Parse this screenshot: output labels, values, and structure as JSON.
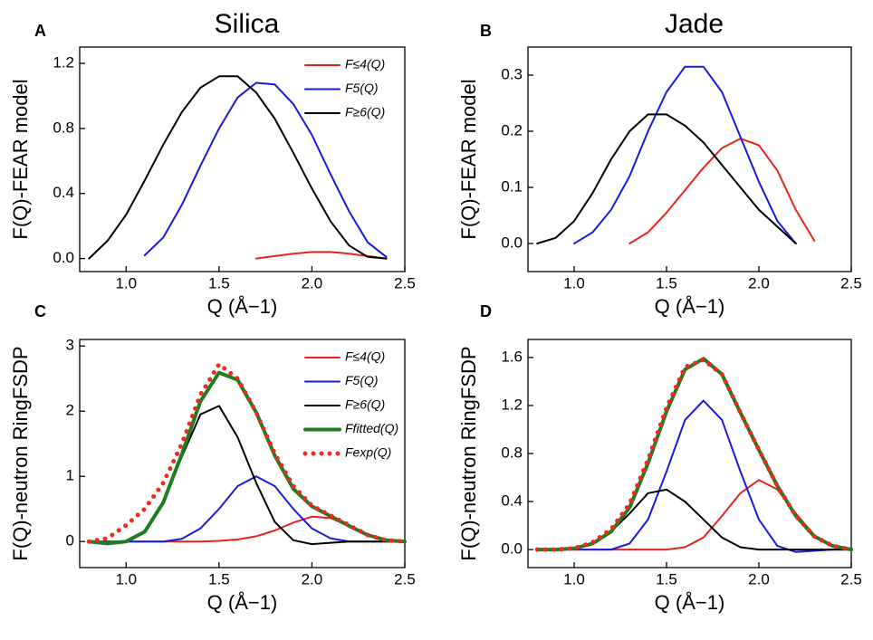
{
  "chart_data": [
    {
      "type": "line",
      "panel_label": "A",
      "title": "Silica",
      "xlabel": "Q (Å−1)",
      "ylabel": "F(Q)-FEAR model",
      "x": [
        0.8,
        0.9,
        1.0,
        1.1,
        1.2,
        1.3,
        1.4,
        1.5,
        1.6,
        1.7,
        1.8,
        1.9,
        2.0,
        2.1,
        2.2,
        2.3,
        2.4,
        2.5
      ],
      "xlim": [
        0.75,
        2.5
      ],
      "xticks": [
        {
          "value": 1,
          "label": "1.0"
        },
        {
          "value": 1.5,
          "label": "1.5"
        },
        {
          "value": 2,
          "label": "2.0"
        },
        {
          "value": 2.5,
          "label": "2.5"
        }
      ],
      "ylim": [
        -0.08,
        1.3
      ],
      "yticks": [
        {
          "value": 0,
          "label": "0.0"
        },
        {
          "value": 0.4,
          "label": "0.4"
        },
        {
          "value": 0.8,
          "label": "0.8"
        },
        {
          "value": 1.2,
          "label": "1.2"
        }
      ],
      "legend": "upper right",
      "series": [
        {
          "name": "F≤4(Q)",
          "color": "#e8231e",
          "values": [
            null,
            null,
            null,
            null,
            null,
            null,
            null,
            null,
            null,
            0.0,
            0.015,
            0.03,
            0.04,
            0.04,
            0.03,
            0.015,
            0.0,
            null
          ]
        },
        {
          "name": "F5(Q)",
          "color": "#1a1adf",
          "values": [
            null,
            null,
            null,
            0.02,
            0.13,
            0.33,
            0.57,
            0.8,
            0.99,
            1.08,
            1.07,
            0.95,
            0.76,
            0.52,
            0.29,
            0.1,
            0.01,
            null
          ]
        },
        {
          "name": "F≥6(Q)",
          "color": "#000000",
          "values": [
            0.0,
            0.11,
            0.27,
            0.48,
            0.7,
            0.9,
            1.05,
            1.12,
            1.12,
            1.02,
            0.86,
            0.65,
            0.43,
            0.23,
            0.08,
            0.01,
            0.0,
            null
          ]
        }
      ]
    },
    {
      "type": "line",
      "panel_label": "B",
      "title": "Jade",
      "xlabel": "Q (Å−1)",
      "ylabel": "F(Q)-FEAR model",
      "x": [
        0.8,
        0.9,
        1.0,
        1.1,
        1.2,
        1.3,
        1.4,
        1.5,
        1.6,
        1.7,
        1.8,
        1.9,
        2.0,
        2.1,
        2.2,
        2.3,
        2.4,
        2.5
      ],
      "xlim": [
        0.75,
        2.5
      ],
      "xticks": [
        {
          "value": 1,
          "label": "1.0"
        },
        {
          "value": 1.5,
          "label": "1.5"
        },
        {
          "value": 2,
          "label": "2.0"
        },
        {
          "value": 2.5,
          "label": "2.5"
        }
      ],
      "ylim": [
        -0.05,
        0.35
      ],
      "yticks": [
        {
          "value": 0,
          "label": "0.0"
        },
        {
          "value": 0.1,
          "label": "0.1"
        },
        {
          "value": 0.2,
          "label": "0.2"
        },
        {
          "value": 0.3,
          "label": "0.3"
        }
      ],
      "series": [
        {
          "color": "#e8231e",
          "values": [
            null,
            null,
            null,
            null,
            null,
            0.0,
            0.02,
            0.055,
            0.095,
            0.135,
            0.17,
            0.187,
            0.175,
            0.13,
            0.06,
            0.005,
            null,
            null
          ]
        },
        {
          "color": "#1a1adf",
          "values": [
            null,
            null,
            0.0,
            0.02,
            0.06,
            0.12,
            0.2,
            0.27,
            0.315,
            0.315,
            0.27,
            0.19,
            0.11,
            0.04,
            0.0,
            null,
            null,
            null
          ]
        },
        {
          "color": "#000000",
          "values": [
            0.0,
            0.01,
            0.04,
            0.09,
            0.15,
            0.2,
            0.23,
            0.23,
            0.21,
            0.18,
            0.14,
            0.1,
            0.06,
            0.03,
            0.0,
            null,
            null,
            null
          ]
        }
      ]
    },
    {
      "type": "line",
      "panel_label": "C",
      "xlabel": "Q (Å−1)",
      "ylabel": "F(Q)-neutron RingFSDP",
      "x": [
        0.8,
        0.9,
        1.0,
        1.1,
        1.2,
        1.3,
        1.4,
        1.5,
        1.6,
        1.7,
        1.8,
        1.9,
        2.0,
        2.1,
        2.2,
        2.3,
        2.4,
        2.5
      ],
      "xlim": [
        0.75,
        2.5
      ],
      "xticks": [
        {
          "value": 1,
          "label": "1.0"
        },
        {
          "value": 1.5,
          "label": "1.5"
        },
        {
          "value": 2,
          "label": "2.0"
        },
        {
          "value": 2.5,
          "label": "2.5"
        }
      ],
      "ylim": [
        -0.4,
        3.1
      ],
      "yticks": [
        0,
        1,
        2,
        3
      ],
      "legend": "upper right",
      "series": [
        {
          "name": "F≤4(Q)",
          "color": "#e8231e",
          "values": [
            0,
            0,
            0,
            0,
            0,
            0,
            0,
            0.01,
            0.03,
            0.08,
            0.17,
            0.29,
            0.38,
            0.36,
            0.24,
            0.1,
            0.02,
            0
          ]
        },
        {
          "name": "F5(Q)",
          "color": "#1a1adf",
          "values": [
            0,
            0,
            0,
            0,
            0,
            0.04,
            0.2,
            0.5,
            0.85,
            1.0,
            0.85,
            0.5,
            0.2,
            0.05,
            0,
            0,
            0,
            0
          ]
        },
        {
          "name": "F≥6(Q)",
          "color": "#000000",
          "values": [
            0,
            -0.03,
            0,
            0.15,
            0.6,
            1.3,
            1.95,
            2.08,
            1.6,
            0.9,
            0.3,
            0.02,
            -0.04,
            -0.02,
            0,
            0,
            0,
            0
          ]
        },
        {
          "name": "Ffitted(Q)",
          "color": "#1e7d1e",
          "width": 4,
          "values": [
            0,
            -0.03,
            0,
            0.15,
            0.6,
            1.34,
            2.15,
            2.59,
            2.48,
            1.98,
            1.32,
            0.81,
            0.54,
            0.39,
            0.24,
            0.1,
            0.02,
            0
          ]
        },
        {
          "name": "Fexp(Q)",
          "color": "#f0281e",
          "linestyle": "dotted",
          "values": [
            0,
            0.05,
            0.25,
            0.5,
            0.9,
            1.5,
            2.25,
            2.72,
            2.5,
            1.98,
            1.35,
            0.85,
            0.55,
            0.4,
            0.25,
            0.1,
            0.02,
            0
          ]
        }
      ]
    },
    {
      "type": "line",
      "panel_label": "D",
      "xlabel": "Q (Å−1)",
      "ylabel": "F(Q)-neutron RingFSDP",
      "x": [
        0.8,
        0.9,
        1.0,
        1.1,
        1.2,
        1.3,
        1.4,
        1.5,
        1.6,
        1.7,
        1.8,
        1.9,
        2.0,
        2.1,
        2.2,
        2.3,
        2.4,
        2.5
      ],
      "xlim": [
        0.75,
        2.5
      ],
      "xticks": [
        {
          "value": 1,
          "label": "1.0"
        },
        {
          "value": 1.5,
          "label": "1.5"
        },
        {
          "value": 2,
          "label": "2.0"
        },
        {
          "value": 2.5,
          "label": "2.5"
        }
      ],
      "ylim": [
        -0.15,
        1.75
      ],
      "yticks": [
        {
          "value": 0,
          "label": "0.0"
        },
        {
          "value": 0.4,
          "label": "0.4"
        },
        {
          "value": 0.8,
          "label": "0.8"
        },
        {
          "value": 1.2,
          "label": "1.2"
        },
        {
          "value": 1.6,
          "label": "1.6"
        }
      ],
      "series": [
        {
          "color": "#e8231e",
          "values": [
            0,
            0,
            0,
            0,
            0,
            0,
            0,
            0,
            0.02,
            0.1,
            0.28,
            0.47,
            0.58,
            0.5,
            0.3,
            0.12,
            0.03,
            0
          ]
        },
        {
          "color": "#1a1adf",
          "values": [
            0,
            0,
            0,
            0,
            0,
            0.05,
            0.25,
            0.65,
            1.08,
            1.24,
            1.08,
            0.65,
            0.25,
            0.03,
            -0.02,
            -0.01,
            0,
            0
          ]
        },
        {
          "color": "#000000",
          "values": [
            0,
            0,
            0.01,
            0.05,
            0.15,
            0.3,
            0.47,
            0.5,
            0.4,
            0.25,
            0.1,
            0.02,
            0,
            0,
            0,
            0,
            0,
            0
          ]
        },
        {
          "color": "#1e7d1e",
          "width": 4,
          "values": [
            0,
            0,
            0.01,
            0.05,
            0.15,
            0.35,
            0.72,
            1.15,
            1.5,
            1.59,
            1.46,
            1.14,
            0.83,
            0.53,
            0.28,
            0.11,
            0.03,
            0
          ]
        },
        {
          "color": "#f0281e",
          "linestyle": "dotted",
          "values": [
            0,
            0,
            0.01,
            0.06,
            0.17,
            0.38,
            0.75,
            1.18,
            1.52,
            1.58,
            1.46,
            1.14,
            0.83,
            0.53,
            0.28,
            0.11,
            0.03,
            0
          ]
        }
      ]
    }
  ]
}
